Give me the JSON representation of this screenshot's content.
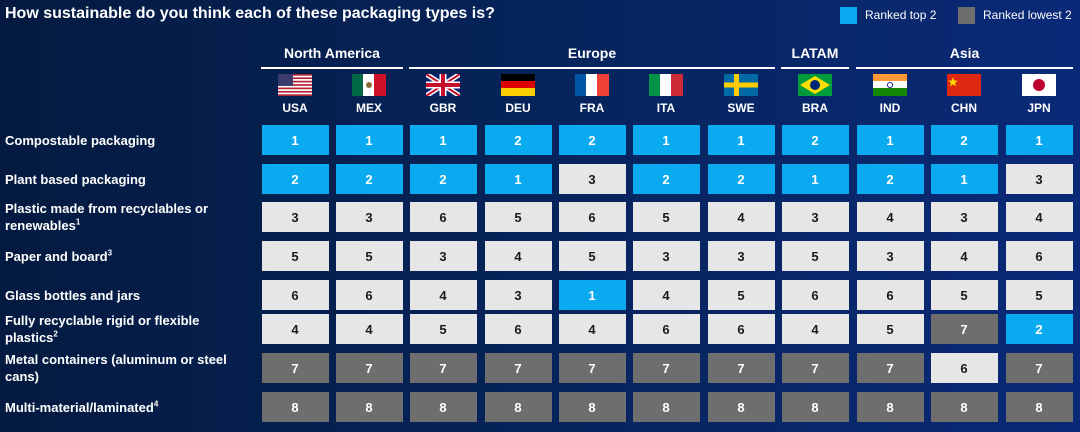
{
  "title": "How sustainable do you think each of these packaging types is?",
  "legend": [
    {
      "label": "Ranked top 2",
      "color": "#0aaaf0"
    },
    {
      "label": "Ranked lowest 2",
      "color": "#6e6e6e"
    }
  ],
  "colors": {
    "top": "#0aaaf0",
    "low": "#6e6e6e",
    "neutral": "#e6e6e6"
  },
  "regions": [
    {
      "name": "North America",
      "countries": [
        "USA",
        "MEX"
      ]
    },
    {
      "name": "Europe",
      "countries": [
        "GBR",
        "DEU",
        "FRA",
        "ITA",
        "SWE"
      ]
    },
    {
      "name": "LATAM",
      "countries": [
        "BRA"
      ]
    },
    {
      "name": "Asia",
      "countries": [
        "IND",
        "CHN",
        "JPN"
      ]
    }
  ],
  "chart_data": {
    "type": "table",
    "title": "How sustainable do you think each of these packaging types is?",
    "columns": [
      "USA",
      "MEX",
      "GBR",
      "DEU",
      "FRA",
      "ITA",
      "SWE",
      "BRA",
      "IND",
      "CHN",
      "JPN"
    ],
    "rows": [
      {
        "label": "Compostable packaging",
        "sup": "",
        "values": [
          1,
          1,
          1,
          2,
          2,
          1,
          1,
          2,
          1,
          2,
          1
        ]
      },
      {
        "label": "Plant based packaging",
        "sup": "",
        "values": [
          2,
          2,
          2,
          1,
          3,
          2,
          2,
          1,
          2,
          1,
          3
        ]
      },
      {
        "label": "Plastic made from recyclables or renewables",
        "sup": "1",
        "values": [
          3,
          3,
          6,
          5,
          6,
          5,
          4,
          3,
          4,
          3,
          4
        ]
      },
      {
        "label": "Paper and board",
        "sup": "3",
        "values": [
          5,
          5,
          3,
          4,
          5,
          3,
          3,
          5,
          3,
          4,
          6
        ]
      },
      {
        "label": "Glass bottles and jars",
        "sup": "",
        "values": [
          6,
          6,
          4,
          3,
          1,
          4,
          5,
          6,
          6,
          5,
          5
        ]
      },
      {
        "label": "Fully recyclable rigid or flexible plastics",
        "sup": "2",
        "values": [
          4,
          4,
          5,
          6,
          4,
          6,
          6,
          4,
          5,
          7,
          2
        ]
      },
      {
        "label": "Metal containers (aluminum or steel cans)",
        "sup": "",
        "values": [
          7,
          7,
          7,
          7,
          7,
          7,
          7,
          7,
          7,
          6,
          7
        ]
      },
      {
        "label": "Multi-material/laminated",
        "sup": "4",
        "values": [
          8,
          8,
          8,
          8,
          8,
          8,
          8,
          8,
          8,
          8,
          8
        ]
      }
    ],
    "legend_placement": "top-right"
  }
}
